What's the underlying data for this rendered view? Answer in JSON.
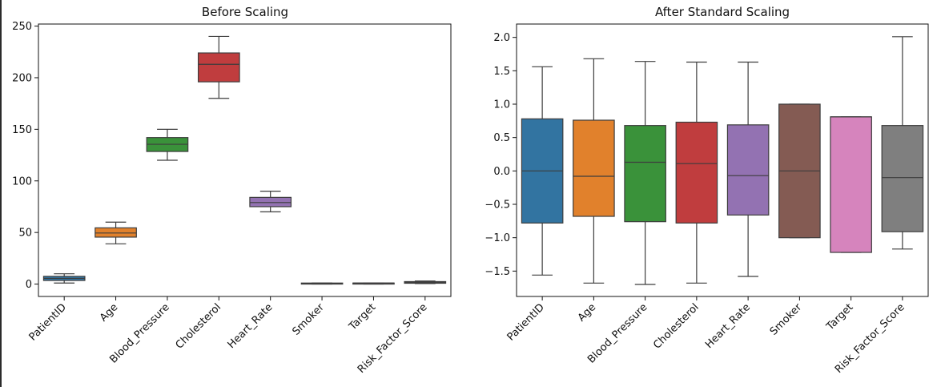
{
  "chart_data": [
    {
      "type": "box",
      "title": "Before Scaling",
      "xlabel": "",
      "ylabel": "",
      "ylim": [
        -12,
        252
      ],
      "yticks": [
        0,
        50,
        100,
        150,
        200,
        250
      ],
      "ytick_labels": [
        "0",
        "50",
        "100",
        "150",
        "200",
        "250"
      ],
      "grid": false,
      "categories": [
        "PatientID",
        "Age",
        "Blood_Pressure",
        "Cholesterol",
        "Heart_Rate",
        "Smoker",
        "Target",
        "Risk_Factor_Score"
      ],
      "boxes": [
        {
          "name": "PatientID",
          "whisker_low": 1,
          "q1": 3.5,
          "median": 5.5,
          "q3": 7.5,
          "whisker_high": 10,
          "color": "#3274a1"
        },
        {
          "name": "Age",
          "whisker_low": 39,
          "q1": 45.5,
          "median": 49.5,
          "q3": 54.5,
          "whisker_high": 60,
          "color": "#e1812c"
        },
        {
          "name": "Blood_Pressure",
          "whisker_low": 120,
          "q1": 128.5,
          "median": 135.5,
          "q3": 142,
          "whisker_high": 150,
          "color": "#3a923a"
        },
        {
          "name": "Cholesterol",
          "whisker_low": 180,
          "q1": 196,
          "median": 213,
          "q3": 224,
          "whisker_high": 240,
          "color": "#c03d3e"
        },
        {
          "name": "Heart_Rate",
          "whisker_low": 70,
          "q1": 75,
          "median": 79,
          "q3": 84,
          "whisker_high": 90,
          "color": "#9372b2"
        },
        {
          "name": "Smoker",
          "whisker_low": 0,
          "q1": 0,
          "median": 0.5,
          "q3": 1,
          "whisker_high": 1,
          "color": "#845b53"
        },
        {
          "name": "Target",
          "whisker_low": 0,
          "q1": 0,
          "median": 1,
          "q3": 1,
          "whisker_high": 1,
          "color": "#d684bd"
        },
        {
          "name": "Risk_Factor_Score",
          "whisker_low": 0.5,
          "q1": 0.8,
          "median": 1.5,
          "q3": 2.4,
          "whisker_high": 3,
          "color": "#7f7f7f"
        }
      ]
    },
    {
      "type": "box",
      "title": "After Standard Scaling",
      "xlabel": "",
      "ylabel": "",
      "ylim": [
        -1.88,
        2.2
      ],
      "yticks": [
        -1.5,
        -1.0,
        -0.5,
        0.0,
        0.5,
        1.0,
        1.5,
        2.0
      ],
      "ytick_labels": [
        "−1.5",
        "−1.0",
        "−0.5",
        "0.0",
        "0.5",
        "1.0",
        "1.5",
        "2.0"
      ],
      "grid": false,
      "categories": [
        "PatientID",
        "Age",
        "Blood_Pressure",
        "Cholesterol",
        "Heart_Rate",
        "Smoker",
        "Target",
        "Risk_Factor_Score"
      ],
      "boxes": [
        {
          "name": "PatientID",
          "whisker_low": -1.56,
          "q1": -0.78,
          "median": 0.0,
          "q3": 0.78,
          "whisker_high": 1.56,
          "color": "#3274a1"
        },
        {
          "name": "Age",
          "whisker_low": -1.68,
          "q1": -0.68,
          "median": -0.08,
          "q3": 0.76,
          "whisker_high": 1.68,
          "color": "#e1812c"
        },
        {
          "name": "Blood_Pressure",
          "whisker_low": -1.7,
          "q1": -0.76,
          "median": 0.13,
          "q3": 0.68,
          "whisker_high": 1.64,
          "color": "#3a923a"
        },
        {
          "name": "Cholesterol",
          "whisker_low": -1.68,
          "q1": -0.78,
          "median": 0.11,
          "q3": 0.73,
          "whisker_high": 1.63,
          "color": "#c03d3e"
        },
        {
          "name": "Heart_Rate",
          "whisker_low": -1.58,
          "q1": -0.66,
          "median": -0.07,
          "q3": 0.69,
          "whisker_high": 1.63,
          "color": "#9372b2"
        },
        {
          "name": "Smoker",
          "whisker_low": -1.0,
          "q1": -1.0,
          "median": 0.0,
          "q3": 1.0,
          "whisker_high": 1.0,
          "color": "#845b53"
        },
        {
          "name": "Target",
          "whisker_low": -1.22,
          "q1": -1.22,
          "median": 0.81,
          "q3": 0.81,
          "whisker_high": 0.81,
          "color": "#d684bd"
        },
        {
          "name": "Risk_Factor_Score",
          "whisker_low": -1.17,
          "q1": -0.91,
          "median": -0.1,
          "q3": 0.68,
          "whisker_high": 2.01,
          "color": "#7f7f7f"
        }
      ]
    }
  ]
}
